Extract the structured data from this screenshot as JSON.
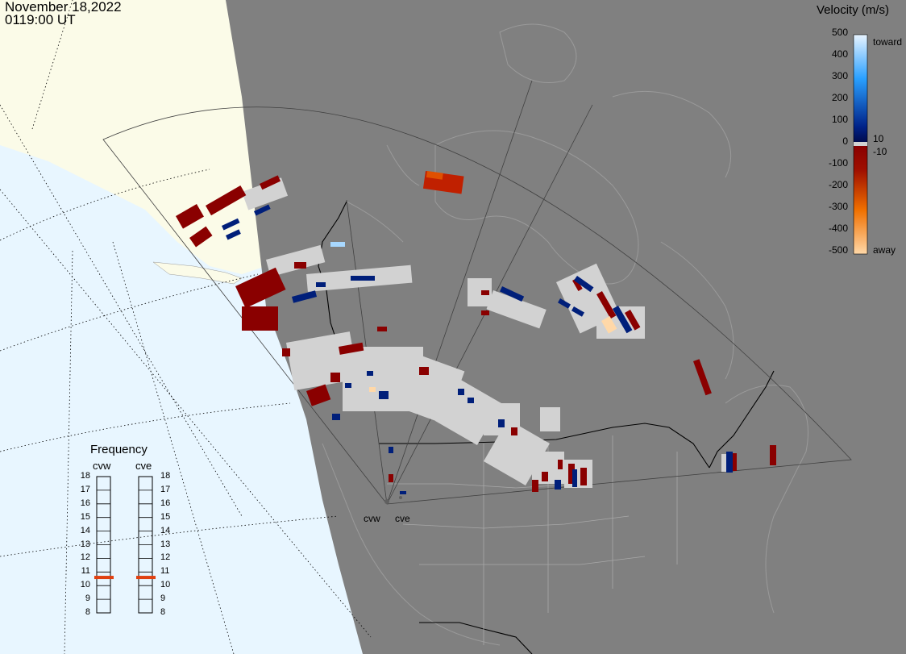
{
  "header": {
    "date": "November 18,2022",
    "time": "0119:00 UT"
  },
  "velocity_scale": {
    "title": "Velocity (m/s)",
    "ticks": [
      "500",
      "400",
      "300",
      "200",
      "100",
      "0",
      "-100",
      "-200",
      "-300",
      "-400",
      "-500"
    ],
    "toward_label": "toward",
    "away_label": "away",
    "plus_threshold": "10",
    "minus_threshold": "-10",
    "colors": {
      "toward_high": "#e8f4ff",
      "toward_mid": "#2aa0ff",
      "toward_low": "#002288",
      "away_low": "#8a0000",
      "away_mid": "#e05000",
      "away_high": "#ffd8a8"
    }
  },
  "frequency_panel": {
    "title": "Frequency",
    "radars": [
      {
        "name": "cvw",
        "frequency_mhz": 10.6
      },
      {
        "name": "cve",
        "frequency_mhz": 10.6
      }
    ],
    "levels": [
      "18",
      "17",
      "16",
      "15",
      "14",
      "13",
      "12",
      "11",
      "10",
      "9",
      "8"
    ],
    "marker_color": "#e04010"
  },
  "radar_sites": [
    {
      "name": "cvw"
    },
    {
      "name": "cve"
    }
  ],
  "map_colors": {
    "ocean": "#e8f6ff",
    "land_lit": "#fbfbe8",
    "night": "#808080",
    "ground_scatter": "#d2d2d2",
    "away": "#8a0000",
    "toward": "#001f7a"
  }
}
